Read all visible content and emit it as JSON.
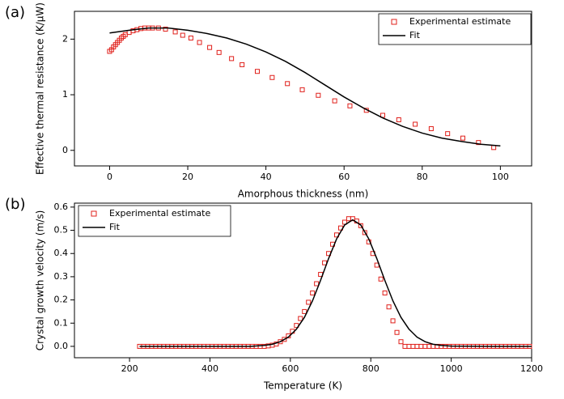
{
  "chart_data": [
    {
      "type": "line",
      "panel_label": "(a)",
      "x_label": "Amorphous thickness (nm)",
      "y_label": "Effective thermal resistance (K/μW)",
      "xlim": [
        -9,
        108
      ],
      "ylim": [
        -0.28,
        2.5
      ],
      "xticks": [
        0,
        20,
        40,
        60,
        80,
        100
      ],
      "yticks": [
        0,
        1,
        2
      ],
      "legend": "top-right",
      "series": [
        {
          "name": "Experimental estimate",
          "color": "#e0201b",
          "marker": "square",
          "x": [
            0,
            0.5,
            1,
            1.5,
            2,
            2.5,
            3,
            3.5,
            4,
            5,
            6,
            7,
            8,
            9,
            10,
            11,
            12.5,
            14.3,
            16.8,
            18.7,
            20.8,
            23,
            25.6,
            28,
            31.2,
            33.9,
            37.8,
            41.6,
            45.5,
            49.3,
            53.4,
            57.6,
            61.5,
            65.7,
            69.9,
            74,
            78.2,
            82.3,
            86.5,
            90.4,
            94.4,
            98.3
          ],
          "values": [
            1.78,
            1.81,
            1.86,
            1.9,
            1.94,
            1.98,
            2.02,
            2.05,
            2.08,
            2.12,
            2.15,
            2.17,
            2.19,
            2.2,
            2.2,
            2.2,
            2.2,
            2.18,
            2.13,
            2.07,
            2.02,
            1.94,
            1.85,
            1.76,
            1.65,
            1.54,
            1.42,
            1.31,
            1.2,
            1.09,
            0.99,
            0.89,
            0.8,
            0.72,
            0.63,
            0.55,
            0.47,
            0.39,
            0.3,
            0.22,
            0.14,
            0.05
          ]
        },
        {
          "name": "Fit",
          "color": "#000000",
          "marker": "line",
          "x": [
            0,
            5,
            10,
            15,
            20,
            25,
            30,
            35,
            40,
            45,
            50,
            55,
            60,
            65,
            70,
            75,
            80,
            85,
            90,
            95,
            100
          ],
          "values": [
            2.11,
            2.16,
            2.2,
            2.2,
            2.16,
            2.1,
            2.02,
            1.91,
            1.77,
            1.6,
            1.4,
            1.18,
            0.96,
            0.76,
            0.58,
            0.43,
            0.31,
            0.22,
            0.16,
            0.11,
            0.08
          ]
        }
      ]
    },
    {
      "type": "line",
      "panel_label": "(b)",
      "x_label": "Temperature (K)",
      "y_label": "Crystal growth velocity (m/s)",
      "xlim": [
        63,
        1200
      ],
      "ylim": [
        -0.049,
        0.617
      ],
      "xticks": [
        200,
        400,
        600,
        800,
        1000,
        1200
      ],
      "yticks": [
        {
          "value": 0,
          "label": "0.0"
        },
        {
          "value": 0.1,
          "label": "0.1"
        },
        {
          "value": 0.2,
          "label": "0.2"
        },
        {
          "value": 0.3,
          "label": "0.3"
        },
        {
          "value": 0.4,
          "label": "0.4"
        },
        {
          "value": 0.5,
          "label": "0.5"
        },
        {
          "value": 0.6,
          "label": "0.6"
        }
      ],
      "legend": "top-left",
      "series": [
        {
          "name": "Experimental estimate",
          "color": "#e0201b",
          "marker": "square",
          "x": [
            225,
            235,
            245,
            255,
            265,
            275,
            285,
            295,
            305,
            315,
            325,
            335,
            345,
            355,
            365,
            375,
            385,
            395,
            405,
            415,
            425,
            435,
            445,
            455,
            465,
            475,
            485,
            495,
            505,
            515,
            525,
            535,
            545,
            555,
            565,
            575,
            585,
            595,
            605,
            615,
            625,
            635,
            645,
            655,
            665,
            675,
            685,
            695,
            705,
            715,
            725,
            735,
            745,
            755,
            765,
            775,
            785,
            795,
            805,
            815,
            825,
            835,
            845,
            855,
            865,
            875,
            885,
            895,
            905,
            915,
            925,
            935,
            945,
            955,
            965,
            975,
            985,
            995,
            1005,
            1015,
            1025,
            1035,
            1045,
            1055,
            1065,
            1075,
            1085,
            1095,
            1105,
            1115,
            1125,
            1135,
            1145,
            1155,
            1165,
            1175,
            1185,
            1195
          ],
          "values": [
            0,
            0,
            0,
            0,
            0,
            0,
            0,
            0,
            0,
            0,
            0,
            0,
            0,
            0,
            0,
            0,
            0,
            0,
            0,
            0,
            0,
            0,
            0,
            0,
            0,
            0,
            0,
            0,
            0,
            0,
            0,
            0,
            0.002,
            0.005,
            0.01,
            0.02,
            0.03,
            0.045,
            0.065,
            0.09,
            0.12,
            0.15,
            0.19,
            0.23,
            0.27,
            0.31,
            0.36,
            0.4,
            0.44,
            0.48,
            0.51,
            0.535,
            0.55,
            0.55,
            0.54,
            0.52,
            0.49,
            0.45,
            0.4,
            0.35,
            0.29,
            0.23,
            0.17,
            0.11,
            0.06,
            0.02,
            0,
            0,
            0,
            0,
            0,
            0,
            0,
            0,
            0,
            0,
            0,
            0,
            0,
            0,
            0,
            0,
            0,
            0,
            0,
            0,
            0,
            0,
            0,
            0,
            0,
            0,
            0,
            0,
            0,
            0,
            0,
            0
          ]
        },
        {
          "name": "Fit",
          "color": "#000000",
          "marker": "line",
          "x": [
            225,
            300,
            400,
            500,
            535,
            555,
            575,
            595,
            615,
            635,
            655,
            675,
            695,
            715,
            735,
            755,
            775,
            795,
            815,
            835,
            855,
            875,
            895,
            915,
            935,
            955,
            975,
            1000,
            1100,
            1200
          ],
          "values": [
            0,
            0,
            0,
            0,
            0.004,
            0.009,
            0.02,
            0.04,
            0.074,
            0.125,
            0.196,
            0.284,
            0.378,
            0.463,
            0.523,
            0.545,
            0.523,
            0.463,
            0.378,
            0.284,
            0.196,
            0.125,
            0.074,
            0.04,
            0.02,
            0.009,
            0.004,
            0.001,
            0,
            0
          ]
        }
      ]
    }
  ]
}
